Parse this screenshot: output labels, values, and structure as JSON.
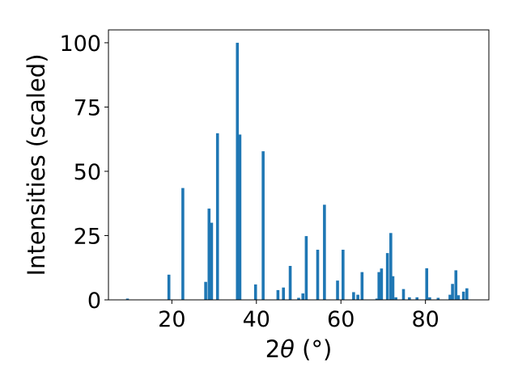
{
  "chart_data": {
    "type": "bar",
    "xlabel_prefix": "2",
    "xlabel_symbol": "θ",
    "xlabel_suffix": " (°)",
    "ylabel": "Intensities (scaled)",
    "xlim": [
      5,
      95
    ],
    "ylim": [
      0,
      105
    ],
    "xticks": [
      20,
      40,
      60,
      80
    ],
    "yticks": [
      0,
      25,
      50,
      75,
      100
    ],
    "bar_color": "#1f77b4",
    "grid": false,
    "legend": "none",
    "x": [
      9.5,
      19.3,
      22.6,
      28.0,
      28.8,
      29.4,
      30.8,
      35.5,
      36.1,
      39.8,
      41.6,
      45.1,
      46.4,
      48.0,
      50.0,
      51.0,
      51.8,
      54.5,
      56.1,
      59.2,
      60.5,
      63.0,
      64.0,
      65.0,
      68.5,
      69.0,
      69.6,
      71.0,
      71.8,
      72.3,
      73.0,
      74.8,
      76.2,
      78.0,
      80.3,
      81.0,
      83.0,
      85.8,
      86.4,
      87.2,
      87.8,
      89.0,
      89.8
    ],
    "values": [
      0.5,
      9.8,
      43.5,
      7.0,
      35.5,
      30.0,
      64.8,
      100.0,
      64.3,
      6.0,
      57.8,
      3.8,
      4.8,
      13.2,
      0.8,
      2.5,
      24.8,
      19.5,
      37.0,
      7.5,
      19.5,
      3.0,
      2.0,
      10.8,
      0.5,
      10.8,
      12.2,
      18.2,
      26.0,
      9.2,
      1.0,
      4.2,
      1.0,
      1.0,
      12.3,
      1.0,
      0.8,
      2.0,
      6.2,
      11.5,
      1.8,
      3.2,
      4.5
    ]
  }
}
